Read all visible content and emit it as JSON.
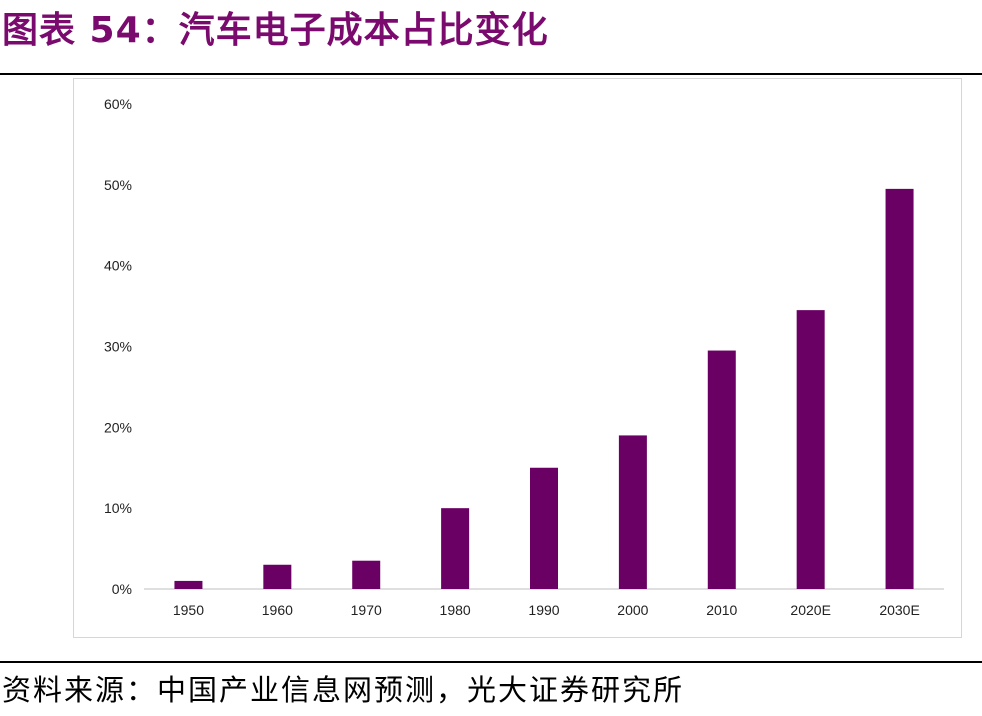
{
  "header": {
    "title": "图表 54：汽车电子成本占比变化"
  },
  "footer": {
    "source": "资料来源：中国产业信息网预测，光大证券研究所"
  },
  "chart_data": {
    "type": "bar",
    "title": "",
    "xlabel": "",
    "ylabel": "",
    "categories": [
      "1950",
      "1960",
      "1970",
      "1980",
      "1990",
      "2000",
      "2010",
      "2020E",
      "2030E"
    ],
    "values": [
      1,
      3,
      3.5,
      10,
      15,
      19,
      29.5,
      34.5,
      49.5
    ],
    "ylim": [
      0,
      60
    ],
    "yticks": [
      "0%",
      "10%",
      "20%",
      "30%",
      "40%",
      "50%",
      "60%"
    ],
    "bar_color": "#6b0064",
    "grid": false,
    "legend": "none"
  }
}
